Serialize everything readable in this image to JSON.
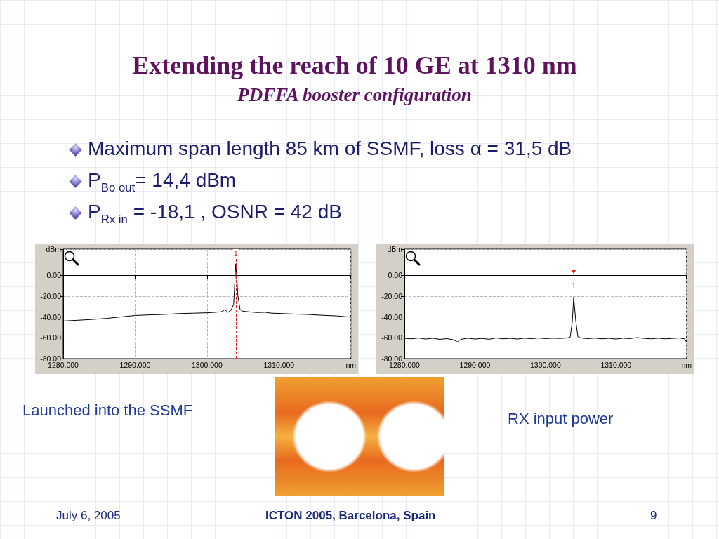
{
  "chart_data": [
    {
      "type": "line",
      "title": "Extending the reach of 10 GE at 1310 nm",
      "subtitle": "PDFFA booster configuration",
      "annotations": [
        "Maximum span length 85 km of SSMF, loss α = 31,5 dB",
        "P$_{Bo out}$= 14,4 dBm",
        "P$_{Rx in}$ = -18,1 , OSNR = 42 dB",
        "Launched into the SSMF",
        "July 6,  2005",
        "ICTON 2005, Barcelona, Spain",
        "9",
        {
          "text": "1",
          "x": 1304,
          "y": 21
        }
      ],
      "x": [
        1280,
        1282,
        1284,
        1286,
        1288,
        1290,
        1292,
        1294,
        1296,
        1298,
        1300,
        1301,
        1302,
        1302.5,
        1302.9,
        1303.3,
        1303.7,
        1304.0,
        1304.3,
        1304.6,
        1305,
        1306,
        1307,
        1308,
        1309,
        1310,
        1312,
        1314,
        1316,
        1318,
        1320
      ],
      "series": [
        {
          "color": "#000000",
          "values": [
            -43.9,
            -43.2,
            -42.4,
            -41.4,
            -40.0,
            -38.6,
            -38.0,
            -37.6,
            -36.8,
            -36.4,
            -36.0,
            -35.6,
            -35.0,
            -33.0,
            -35.5,
            -34.0,
            -28,
            11,
            -20,
            -33,
            -34.5,
            -35.2,
            -35.8,
            -35.5,
            -36.4,
            -36.6,
            -37.2,
            -37.6,
            -38.4,
            -39.0,
            -40.2
          ]
        }
      ],
      "xlim": [
        1280,
        1320
      ],
      "xticks": [
        {
          "value": 1280,
          "label": "1280.000"
        },
        {
          "value": 1290,
          "label": "1290.000"
        },
        {
          "value": 1300,
          "label": "1300.000"
        },
        {
          "value": 1310,
          "label": "1310.000"
        },
        {
          "value": 1320,
          "label": "nm"
        }
      ],
      "ylim": [
        -80,
        25
      ],
      "yticks": [
        {
          "value": -80,
          "label": "-80.00"
        },
        {
          "value": -60,
          "label": "-60.00"
        },
        {
          "value": -40,
          "label": "-40.00"
        },
        {
          "value": -20,
          "label": "-20.00"
        },
        {
          "value": 0,
          "label": "0.00"
        },
        {
          "value": 25,
          "label": "dBm"
        }
      ],
      "ref_lines": [
        {
          "axis": "x",
          "value": 1304,
          "color": "#e02020",
          "line_style": "dashed"
        }
      ],
      "grid": true,
      "marker": "none",
      "line_style": "solid"
    },
    {
      "type": "line",
      "annotations": [
        "RX input power",
        {
          "text": "1",
          "x": 1304,
          "y": -10
        }
      ],
      "x": [
        1280,
        1281,
        1282,
        1283,
        1284,
        1285,
        1286,
        1287,
        1287.5,
        1288,
        1289,
        1290,
        1291,
        1292,
        1293,
        1294,
        1295,
        1296,
        1297,
        1298,
        1299,
        1300,
        1301,
        1302,
        1303,
        1303.5,
        1303.8,
        1304.0,
        1304.3,
        1304.6,
        1305,
        1306,
        1307,
        1308,
        1309,
        1310,
        1311,
        1312,
        1313,
        1314,
        1315,
        1316,
        1317,
        1318,
        1319,
        1319.7,
        1320
      ],
      "series": [
        {
          "color": "#000000",
          "values": [
            -60.5,
            -61,
            -60.2,
            -61.2,
            -60.4,
            -61.5,
            -60.8,
            -62,
            -64,
            -61.5,
            -60.4,
            -61.2,
            -60.6,
            -61.4,
            -60.2,
            -61,
            -60.5,
            -61.2,
            -60.4,
            -60.9,
            -60.2,
            -60.8,
            -60.4,
            -60.6,
            -60.2,
            -59.5,
            -45,
            -21,
            -44,
            -59,
            -60.2,
            -60.8,
            -60.3,
            -61,
            -60.5,
            -61.2,
            -60.4,
            -60.8,
            -59.8,
            -60.6,
            -61,
            -60.4,
            -61,
            -60.6,
            -60.2,
            -61,
            -64
          ]
        }
      ],
      "xlim": [
        1280,
        1320
      ],
      "xticks": [
        {
          "value": 1280,
          "label": "1280.000"
        },
        {
          "value": 1290,
          "label": "1290.000"
        },
        {
          "value": 1300,
          "label": "1300.000"
        },
        {
          "value": 1310,
          "label": "1310.000"
        },
        {
          "value": 1320,
          "label": "nm"
        }
      ],
      "ylim": [
        -80,
        25
      ],
      "yticks": [
        {
          "value": -80,
          "label": "-80.00"
        },
        {
          "value": -60,
          "label": "-60.00"
        },
        {
          "value": -40,
          "label": "-40.00"
        },
        {
          "value": -20,
          "label": "-20.00"
        },
        {
          "value": 0,
          "label": "0.00"
        },
        {
          "value": 25,
          "label": "dBm"
        }
      ],
      "ref_lines": [
        {
          "axis": "x",
          "value": 1304,
          "color": "#e02020",
          "line_style": "dashed"
        }
      ],
      "grid": true,
      "marker": "none",
      "line_style": "solid"
    }
  ]
}
